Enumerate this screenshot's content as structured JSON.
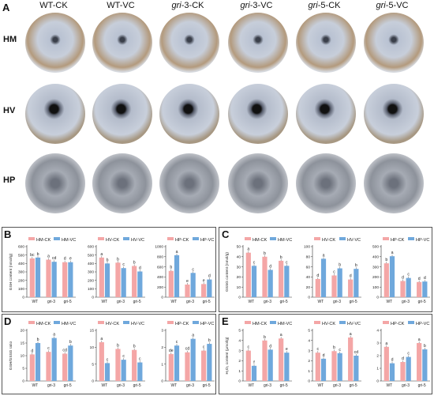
{
  "panel_a": {
    "letter": "A",
    "columns": [
      "WT-CK",
      "WT-VC",
      "gri-3-CK",
      "gri-3-VC",
      "gri-5-CK",
      "gri-5-VC"
    ],
    "rows": [
      "HM",
      "HV",
      "HP"
    ]
  },
  "panels": [
    {
      "letter": "B"
    },
    {
      "letter": "C"
    },
    {
      "letter": "D"
    },
    {
      "letter": "E"
    }
  ],
  "colors": {
    "ck": "#f4a6a6",
    "vc": "#6fa8dc",
    "dish_hm": "#c9d0dd",
    "dish_hp": "#9aa0aa"
  },
  "chart_data": [
    {
      "id": "B1",
      "type": "bar",
      "categories": [
        "WT",
        "gri-3",
        "gri-5"
      ],
      "series": [
        {
          "name": "HM-CK",
          "values": [
            460,
            445,
            415
          ]
        },
        {
          "name": "HM-VC",
          "values": [
            470,
            420,
            415
          ]
        }
      ],
      "labels": [
        [
          "bc",
          "a",
          "d"
        ],
        [
          "b",
          "cd",
          "e"
        ]
      ],
      "ylabel": "GSH content (nmol/g)",
      "ylim": [
        0,
        600
      ],
      "yticks": [
        0,
        100,
        200,
        300,
        400,
        500,
        600
      ]
    },
    {
      "id": "B2",
      "type": "bar",
      "categories": [
        "WT",
        "gri-3",
        "gri-5"
      ],
      "series": [
        {
          "name": "HV-CK",
          "values": [
            470,
            410,
            370
          ]
        },
        {
          "name": "HV-VC",
          "values": [
            400,
            345,
            305
          ]
        }
      ],
      "labels": [
        [
          "a",
          "b",
          "b"
        ],
        [
          "b",
          "c",
          "d"
        ]
      ],
      "ylabel": "",
      "ylim": [
        0,
        600
      ],
      "yticks": [
        0,
        100,
        200,
        300,
        400,
        500,
        600
      ]
    },
    {
      "id": "B3",
      "type": "bar",
      "categories": [
        "WT",
        "gri-3",
        "gri-5"
      ],
      "series": [
        {
          "name": "HP-CK",
          "values": [
            520,
            250,
            260
          ]
        },
        {
          "name": "HP-VC",
          "values": [
            830,
            480,
            350
          ]
        }
      ],
      "labels": [
        [
          "b",
          "e",
          "e"
        ],
        [
          "a",
          "c",
          "d"
        ]
      ],
      "ylabel": "",
      "ylim": [
        0,
        1000
      ],
      "yticks": [
        0,
        200,
        400,
        600,
        800,
        1000
      ]
    },
    {
      "id": "C1",
      "type": "bar",
      "categories": [
        "WT",
        "gri-3",
        "gri-5"
      ],
      "series": [
        {
          "name": "HM-CK",
          "values": [
            44,
            40,
            36
          ]
        },
        {
          "name": "HM-VC",
          "values": [
            31,
            27,
            31
          ]
        }
      ],
      "labels": [
        [
          "a",
          "b",
          "b"
        ],
        [
          "c",
          "d",
          "c"
        ]
      ],
      "ylabel": "GSSG content (nmol/g)",
      "ylim": [
        0,
        50
      ],
      "yticks": [
        0,
        10,
        20,
        30,
        40,
        50
      ]
    },
    {
      "id": "C2",
      "type": "bar",
      "categories": [
        "WT",
        "gri-3",
        "gri-5"
      ],
      "series": [
        {
          "name": "HV-CK",
          "values": [
            36,
            43,
            35
          ]
        },
        {
          "name": "HV-VC",
          "values": [
            76,
            57,
            56
          ]
        }
      ],
      "labels": [
        [
          "d",
          "c",
          "d"
        ],
        [
          "a",
          "b",
          "b"
        ]
      ],
      "ylabel": "",
      "ylim": [
        0,
        100
      ],
      "yticks": [
        0,
        20,
        40,
        60,
        80,
        100
      ]
    },
    {
      "id": "C3",
      "type": "bar",
      "categories": [
        "WT",
        "gri-3",
        "gri-5"
      ],
      "series": [
        {
          "name": "HP-CK",
          "values": [
            335,
            160,
            150
          ]
        },
        {
          "name": "HP-VC",
          "values": [
            405,
            190,
            155
          ]
        }
      ],
      "labels": [
        [
          "b",
          "d",
          "d"
        ],
        [
          "a",
          "c",
          "d"
        ]
      ],
      "ylabel": "",
      "ylim": [
        0,
        500
      ],
      "yticks": [
        0,
        100,
        200,
        300,
        400,
        500
      ]
    },
    {
      "id": "D1",
      "type": "bar",
      "categories": [
        "WT",
        "gri-3",
        "gri-5"
      ],
      "series": [
        {
          "name": "HM-CK",
          "values": [
            10.5,
            11.5,
            10.8
          ]
        },
        {
          "name": "HM-VC",
          "values": [
            15,
            17,
            14
          ]
        }
      ],
      "labels": [
        [
          "d",
          "c",
          "cd"
        ],
        [
          "b",
          "a",
          "b"
        ]
      ],
      "ylabel": "GSH/GSSG ratio",
      "ylim": [
        0,
        20
      ],
      "yticks": [
        0,
        5,
        10,
        15,
        20
      ]
    },
    {
      "id": "D2",
      "type": "bar",
      "categories": [
        "WT",
        "gri-3",
        "gri-5"
      ],
      "series": [
        {
          "name": "HV-CK",
          "values": [
            11.5,
            9.5,
            9.2
          ]
        },
        {
          "name": "HV-VC",
          "values": [
            5.3,
            6.3,
            5.5
          ]
        }
      ],
      "labels": [
        [
          "a",
          "b",
          "b"
        ],
        [
          "c",
          "c",
          "c"
        ]
      ],
      "ylabel": "",
      "ylim": [
        0,
        15
      ],
      "yticks": [
        0,
        5,
        10,
        15
      ]
    },
    {
      "id": "D3",
      "type": "bar",
      "categories": [
        "WT",
        "gri-3",
        "gri-5"
      ],
      "series": [
        {
          "name": "HP-CK",
          "values": [
            1.6,
            1.7,
            1.8
          ]
        },
        {
          "name": "HP-VC",
          "values": [
            2.1,
            2.5,
            2.2
          ]
        }
      ],
      "labels": [
        [
          "de",
          "cd",
          "c"
        ],
        [
          "c",
          "a",
          "b"
        ]
      ],
      "ylabel": "",
      "ylim": [
        0,
        3
      ],
      "yticks": [
        0,
        1,
        2,
        3
      ]
    },
    {
      "id": "E1",
      "type": "bar",
      "categories": [
        "WT",
        "gri-3",
        "gri-5"
      ],
      "series": [
        {
          "name": "HM-CK",
          "values": [
            3.0,
            4.0,
            4.2
          ]
        },
        {
          "name": "HM-VC",
          "values": [
            1.5,
            3.1,
            2.8
          ]
        }
      ],
      "labels": [
        [
          "c",
          "b",
          "a"
        ],
        [
          "f",
          "d",
          "e"
        ]
      ],
      "ylabel": "H₂O₂ content (μmol/g)",
      "ylim": [
        0,
        5
      ],
      "yticks": [
        0,
        1,
        2,
        3,
        4,
        5
      ]
    },
    {
      "id": "E2",
      "type": "bar",
      "categories": [
        "WT",
        "gri-3",
        "gri-5"
      ],
      "series": [
        {
          "name": "HV-CK",
          "values": [
            2.8,
            2.95,
            4.3
          ]
        },
        {
          "name": "HV-VC",
          "values": [
            2.2,
            2.75,
            2.5
          ]
        }
      ],
      "labels": [
        [
          "c",
          "b",
          "a"
        ],
        [
          "d",
          "c",
          "cd"
        ]
      ],
      "ylabel": "",
      "ylim": [
        0,
        5
      ],
      "yticks": [
        0,
        1,
        2,
        3,
        4,
        5
      ]
    },
    {
      "id": "E3",
      "type": "bar",
      "categories": [
        "WT",
        "gri-3",
        "gri-5"
      ],
      "series": [
        {
          "name": "HP-CK",
          "values": [
            2.7,
            1.5,
            3.0
          ]
        },
        {
          "name": "HP-VC",
          "values": [
            1.4,
            1.9,
            2.5
          ]
        }
      ],
      "labels": [
        [
          "a",
          "d",
          "a"
        ],
        [
          "d",
          "c",
          "b"
        ]
      ],
      "ylabel": "",
      "ylim": [
        0,
        4
      ],
      "yticks": [
        0,
        1,
        2,
        3,
        4
      ]
    }
  ]
}
